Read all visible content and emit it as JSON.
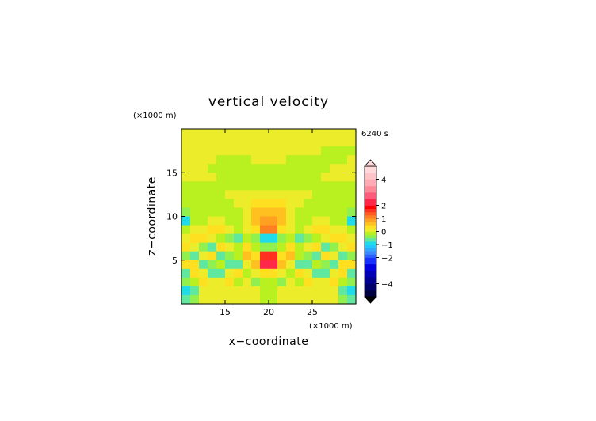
{
  "chart_data": {
    "type": "heatmap",
    "title": "vertical velocity",
    "xlabel": "x−coordinate",
    "ylabel": "z−coordinate",
    "x_unit_label": "(×1000 m)",
    "y_unit_label": "(×1000 m)",
    "time_label": "6240 s",
    "xlim": [
      10,
      30
    ],
    "ylim": [
      0,
      20
    ],
    "x_ticks": [
      "15",
      "20",
      "25"
    ],
    "y_ticks": [
      "5",
      "10",
      "15"
    ],
    "x_tick_values": [
      15,
      20,
      25
    ],
    "y_tick_values": [
      5,
      10,
      15
    ],
    "colorbar": {
      "labels": [
        "4",
        "2",
        "1",
        "0",
        "−1",
        "−2",
        "−4"
      ],
      "label_values": [
        4,
        2,
        1,
        0,
        -1,
        -2,
        -4
      ],
      "bounds": [
        -5.0,
        -4.5,
        -4.0,
        -3.5,
        -3.0,
        -2.5,
        -2.0,
        -1.75,
        -1.5,
        -1.25,
        -1.0,
        -0.75,
        -0.5,
        -0.25,
        0.0,
        0.25,
        0.5,
        0.75,
        1.0,
        1.25,
        1.5,
        1.75,
        2.0,
        2.5,
        3.0,
        3.5,
        4.0,
        4.5,
        5.0
      ],
      "colors": [
        "#000040",
        "#00006a",
        "#000090",
        "#0000b8",
        "#0000e0",
        "#1830ff",
        "#2a60ff",
        "#3a88ff",
        "#30a8ff",
        "#20c8ff",
        "#20dce8",
        "#60e8a0",
        "#90f050",
        "#b8f020",
        "#ecec2a",
        "#ffe020",
        "#ffc020",
        "#ffa020",
        "#ff8020",
        "#ff5a20",
        "#ff3020",
        "#ff0000",
        "#ff2848",
        "#ff5a7a",
        "#ff8898",
        "#ffaab4",
        "#ffc4c8",
        "#ffd8da"
      ],
      "under_color": "#000000",
      "over_color": "#ffd8da"
    },
    "field": {
      "z_rows": [
        19.5,
        18.5,
        17.5,
        16.5,
        15.5,
        14.5,
        13.5,
        12.5,
        11.5,
        10.5,
        9.5,
        8.5,
        7.5,
        6.5,
        5.5,
        4.5,
        3.5,
        2.5,
        1.5,
        0.5
      ],
      "x_cols": [
        10.5,
        11.5,
        12.5,
        13.5,
        14.5,
        15.5,
        16.5,
        17.5,
        18.5,
        19.5,
        20.5,
        21.5,
        22.5,
        23.5,
        24.5,
        25.5,
        26.5,
        27.5,
        28.5,
        29.5
      ],
      "values_m_per_s": [
        [
          0.1,
          0.1,
          0.1,
          0.1,
          0.1,
          0.1,
          0.1,
          0.1,
          0.1,
          0.1,
          0.1,
          0.1,
          0.1,
          0.1,
          0.1,
          0.1,
          0.1,
          0.1,
          0.1,
          0.1
        ],
        [
          0.1,
          0.1,
          0.1,
          0.1,
          0.1,
          0.1,
          0.1,
          0.1,
          0.1,
          0.1,
          0.1,
          0.1,
          0.1,
          0.1,
          0.1,
          0.1,
          0.1,
          0.1,
          0.1,
          0.1
        ],
        [
          0.1,
          0.1,
          0.1,
          0.1,
          0.1,
          0.1,
          0.1,
          0.1,
          0.1,
          0.1,
          0.1,
          0.1,
          0.1,
          0.1,
          0.1,
          0.1,
          -0.1,
          -0.1,
          -0.1,
          -0.1
        ],
        [
          0.1,
          0.1,
          0.1,
          0.1,
          -0.1,
          -0.1,
          -0.1,
          -0.1,
          0.1,
          0.1,
          0.1,
          0.1,
          -0.1,
          -0.1,
          -0.1,
          -0.1,
          -0.1,
          -0.1,
          -0.1,
          0.1
        ],
        [
          0.1,
          0.1,
          0.1,
          -0.1,
          -0.1,
          -0.1,
          -0.1,
          -0.1,
          -0.1,
          -0.1,
          -0.1,
          -0.1,
          -0.1,
          -0.1,
          -0.1,
          -0.1,
          -0.1,
          0.1,
          0.1,
          0.1
        ],
        [
          0.1,
          0.1,
          0.1,
          0.1,
          -0.1,
          -0.1,
          -0.1,
          -0.1,
          -0.1,
          -0.1,
          -0.1,
          -0.1,
          -0.1,
          -0.1,
          -0.1,
          -0.1,
          0.1,
          0.1,
          0.1,
          0.1
        ],
        [
          -0.1,
          -0.1,
          -0.1,
          -0.1,
          -0.1,
          -0.1,
          -0.1,
          -0.1,
          -0.1,
          -0.1,
          -0.1,
          -0.1,
          -0.1,
          -0.1,
          -0.1,
          -0.1,
          -0.1,
          -0.1,
          -0.1,
          -0.1
        ],
        [
          -0.1,
          -0.1,
          -0.1,
          -0.1,
          -0.1,
          0.1,
          0.1,
          0.1,
          0.1,
          0.1,
          0.1,
          0.1,
          0.1,
          0.1,
          0.1,
          -0.1,
          -0.1,
          -0.1,
          -0.1,
          -0.1
        ],
        [
          -0.1,
          -0.1,
          -0.1,
          -0.1,
          -0.1,
          -0.1,
          0.1,
          0.1,
          0.3,
          0.3,
          0.3,
          0.3,
          0.1,
          0.1,
          -0.1,
          -0.1,
          -0.1,
          -0.1,
          -0.1,
          -0.1
        ],
        [
          -0.5,
          -0.1,
          -0.1,
          -0.1,
          -0.1,
          -0.1,
          -0.1,
          0.1,
          0.6,
          0.6,
          0.6,
          0.6,
          0.1,
          -0.1,
          -0.1,
          -0.1,
          -0.1,
          -0.1,
          -0.1,
          -0.5
        ],
        [
          -0.8,
          -0.1,
          -0.1,
          0.1,
          0.1,
          -0.1,
          -0.1,
          0.1,
          0.6,
          0.8,
          0.8,
          0.6,
          0.1,
          -0.1,
          -0.1,
          0.1,
          0.1,
          -0.1,
          -0.1,
          -0.8
        ],
        [
          -0.1,
          0.1,
          0.1,
          0.3,
          0.3,
          0.1,
          -0.1,
          0.1,
          0.3,
          1.2,
          1.2,
          0.3,
          0.1,
          -0.1,
          0.1,
          0.3,
          0.3,
          0.1,
          0.1,
          -0.1
        ],
        [
          0.1,
          0.3,
          0.3,
          0.1,
          -0.1,
          -0.4,
          -0.6,
          -0.1,
          -0.4,
          -0.9,
          -0.9,
          -0.4,
          -0.1,
          -0.6,
          -0.4,
          -0.1,
          0.1,
          0.3,
          0.3,
          0.1
        ],
        [
          0.3,
          0.1,
          -0.4,
          -0.6,
          0.3,
          0.1,
          -0.1,
          0.3,
          -0.1,
          -0.5,
          -0.5,
          -0.1,
          0.3,
          -0.1,
          0.1,
          0.3,
          -0.6,
          -0.4,
          0.1,
          0.3
        ],
        [
          -0.3,
          -0.6,
          0.1,
          0.3,
          -0.6,
          -0.4,
          -0.1,
          0.6,
          0.3,
          1.5,
          1.5,
          0.3,
          0.6,
          -0.1,
          -0.4,
          -0.6,
          0.3,
          0.1,
          -0.6,
          -0.3
        ],
        [
          0.3,
          0.3,
          -0.6,
          -0.4,
          -0.1,
          -0.6,
          -0.6,
          0.1,
          0.6,
          2.0,
          2.0,
          0.6,
          0.1,
          -0.6,
          -0.6,
          -0.1,
          -0.4,
          -0.6,
          0.3,
          0.3
        ],
        [
          -0.6,
          0.3,
          0.1,
          -0.6,
          -0.6,
          0.1,
          0.3,
          -0.1,
          0.1,
          0.3,
          0.3,
          0.1,
          -0.1,
          0.3,
          0.1,
          -0.6,
          -0.6,
          0.1,
          0.3,
          -0.6
        ],
        [
          -0.4,
          -0.1,
          0.3,
          0.1,
          0.1,
          0.3,
          -0.1,
          0.1,
          -0.4,
          -0.1,
          -0.1,
          -0.4,
          0.1,
          -0.1,
          0.3,
          0.1,
          0.1,
          0.3,
          -0.1,
          -0.4
        ],
        [
          -1.0,
          -0.6,
          0.1,
          0.1,
          0.1,
          0.1,
          0.1,
          0.1,
          0.1,
          -0.1,
          -0.1,
          0.1,
          0.1,
          0.1,
          0.1,
          0.1,
          0.1,
          0.1,
          -0.6,
          -1.0
        ],
        [
          -0.6,
          -0.4,
          0.1,
          0.1,
          0.1,
          0.1,
          0.1,
          0.1,
          0.1,
          -0.1,
          -0.1,
          0.1,
          0.1,
          0.1,
          0.1,
          0.1,
          0.1,
          0.1,
          -0.4,
          -0.6
        ]
      ]
    }
  }
}
